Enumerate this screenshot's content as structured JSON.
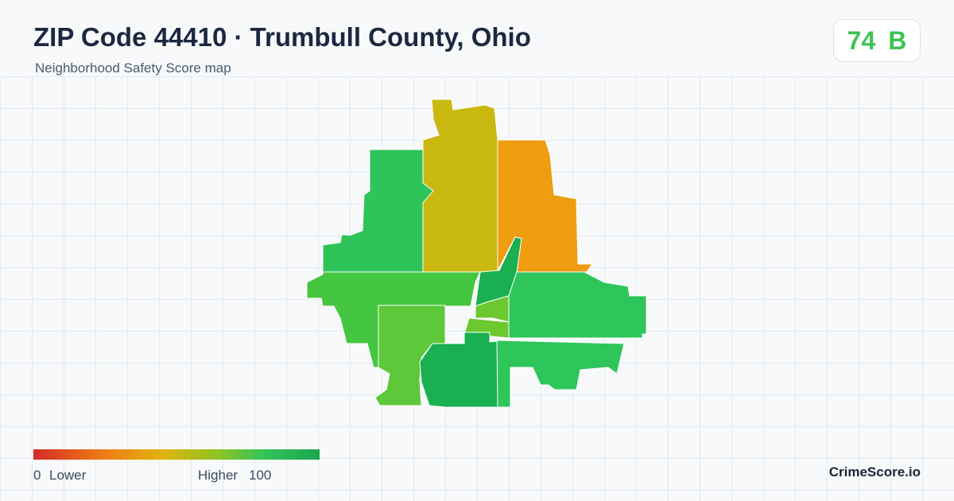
{
  "header": {
    "title": "ZIP Code 44410 · Trumbull County, Ohio",
    "subtitle": "Neighborhood Safety Score map"
  },
  "score": {
    "value": 74,
    "grade": "B"
  },
  "legend": {
    "min": 0,
    "min_label": "Lower",
    "max_label": "Higher",
    "max": 100
  },
  "brand": "CrimeScore.io"
}
